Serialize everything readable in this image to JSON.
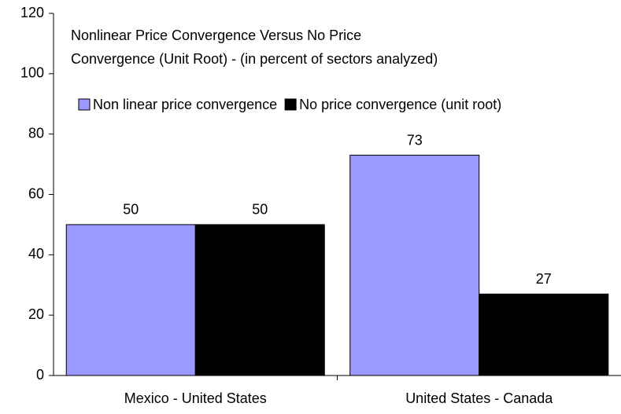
{
  "chart_data": {
    "type": "bar",
    "title": "Nonlinear Price Convergence Versus No Price\nConvergence (Unit Root) - (in percent of sectors analyzed)",
    "categories": [
      "Mexico - United States",
      "United States - Canada"
    ],
    "series": [
      {
        "name": "Non linear price convergence",
        "color": "#9999ff",
        "values": [
          50,
          73
        ]
      },
      {
        "name": "No price convergence (unit root)",
        "color": "#000000",
        "values": [
          50,
          27
        ]
      }
    ],
    "ylim": [
      0,
      120
    ],
    "yticks": [
      0,
      20,
      40,
      60,
      80,
      100,
      120
    ],
    "grid": false
  }
}
